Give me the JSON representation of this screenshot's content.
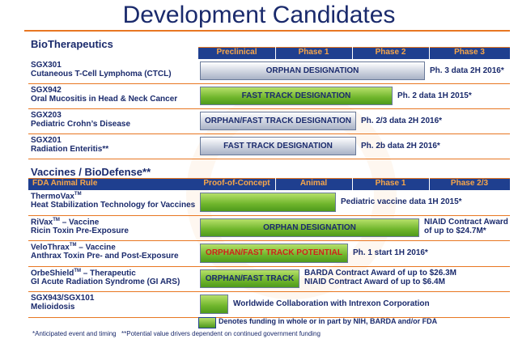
{
  "title": "Development Candidates",
  "sections": [
    {
      "heading": "BioTherapeutics",
      "columns": [
        "Preclinical",
        "Phase 1",
        "Phase 2",
        "Phase 3"
      ],
      "rows": [
        {
          "name": "SGX301",
          "indication": "Cutaneous T-Cell Lymphoma (CTCL)",
          "bar_label": "ORPHAN DESIGNATION",
          "note": [
            "Ph. 3 data 2H 2016*"
          ]
        },
        {
          "name": "SGX942",
          "indication": "Oral Mucositis in Head & Neck Cancer",
          "bar_label": "FAST TRACK DESIGNATION",
          "note": [
            "Ph. 2 data 1H 2015*"
          ]
        },
        {
          "name": "SGX203",
          "indication": "Pediatric Crohn’s Disease",
          "bar_label": "ORPHAN/FAST TRACK DESIGNATION",
          "note": [
            "Ph. 2/3 data 2H 2016*"
          ]
        },
        {
          "name": "SGX201",
          "indication": "Radiation Enteritis**",
          "bar_label": "FAST TRACK DESIGNATION",
          "note": [
            "Ph. 2b data 2H 2016*"
          ]
        }
      ]
    },
    {
      "heading": "Vaccines / BioDefense**",
      "header_label": "FDA Animal Rule",
      "columns": [
        "Proof-of-Concept",
        "Animal",
        "Phase 1",
        "Phase 2/3"
      ],
      "rows": [
        {
          "name": "ThermoVax",
          "tm": "TM",
          "indication": "Heat Stabilization Technology for Vaccines",
          "note": [
            "Pediatric vaccine data 1H 2015*"
          ]
        },
        {
          "name": "RiVax",
          "tm": "TM",
          "suffix": " – Vaccine",
          "indication": "Ricin Toxin Pre-Exposure",
          "bar_label": "ORPHAN DESIGNATION",
          "note": [
            "NIAID Contract Award",
            "of up to $24.7M*"
          ]
        },
        {
          "name": "VeloThrax",
          "tm": "TM",
          "suffix": " – Vaccine",
          "indication": "Anthrax Toxin Pre- and Post-Exposure",
          "bar_label": "ORPHAN/FAST TRACK POTENTIAL",
          "note": [
            "Ph. 1 start 1H 2016*"
          ]
        },
        {
          "name": "OrbeShield",
          "tm": "TM",
          "suffix": " – Therapeutic",
          "indication": "GI Acute Radiation Syndrome (GI ARS)",
          "bar_label": "ORPHAN/FAST TRACK",
          "note": [
            "BARDA Contract Award of up to $26.3M",
            "NIAID Contract Award of up to $6.4M"
          ]
        },
        {
          "name": "SGX943/SGX101",
          "indication": "Melioidosis",
          "note": [
            "Worldwide Collaboration with Intrexon Corporation"
          ]
        }
      ]
    }
  ],
  "legend": "Denotes funding in whole or in part by NIH, BARDA and/or FDA",
  "footnotes": [
    "*Anticipated event and timing",
    "**Potential value drivers dependent on continued government funding"
  ]
}
